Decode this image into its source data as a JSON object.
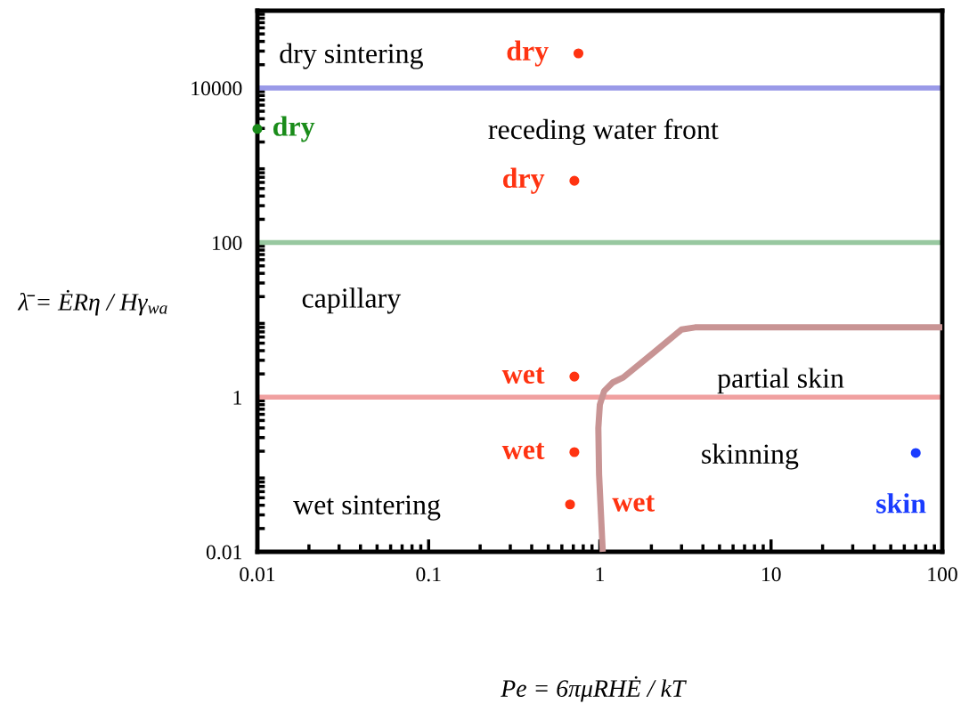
{
  "chart_data": {
    "type": "scatter",
    "xlabel": "Pe = 6πμRHĖ / kT",
    "ylabel": "λ̄ = ĖRη / Hγ$_{wa}$",
    "log": "xy",
    "xlim": [
      0.01,
      100
    ],
    "ylim": [
      0.01,
      100000
    ],
    "xticks": [
      0.01,
      0.1,
      1,
      10,
      100
    ],
    "yticks": [
      0.01,
      1,
      100,
      10000
    ],
    "grid": false,
    "marker": "circle",
    "ref_lines": [
      {
        "axis": "y",
        "value": 10000,
        "color": "#9a9ae8"
      },
      {
        "axis": "y",
        "value": 100,
        "color": "#98c8a0"
      },
      {
        "axis": "y",
        "value": 1,
        "color": "#f0a0a0"
      }
    ],
    "series": [
      {
        "type": "line",
        "marker": "none",
        "color": "#c89494",
        "x": [
          1.04,
          0.99,
          0.98,
          1.0,
          1.06,
          1.19,
          1.37,
          2.1,
          3.0,
          3.6,
          100
        ],
        "values": [
          0.01,
          0.1,
          0.4,
          0.8,
          1.2,
          1.55,
          1.8,
          3.9,
          7.5,
          8,
          8
        ]
      },
      {
        "color": "#ff3311",
        "x": [
          0.75,
          0.71,
          0.71,
          0.71,
          0.67
        ],
        "values": [
          28000,
          630,
          1.85,
          0.195,
          0.041
        ],
        "value_labels": [
          "dry",
          "dry",
          "wet",
          "wet",
          "wet"
        ]
      },
      {
        "color": "#1a8c1a",
        "x": [
          0.01
        ],
        "values": [
          2950
        ],
        "value_labels": [
          "dry"
        ]
      },
      {
        "color": "#1a3cff",
        "x": [
          70
        ],
        "values": [
          0.19
        ],
        "value_labels": [
          "skin"
        ]
      }
    ],
    "annotations": [
      "dry sintering",
      "receding water front",
      "capillary",
      "partial skin",
      "skinning",
      "wet sintering"
    ]
  }
}
